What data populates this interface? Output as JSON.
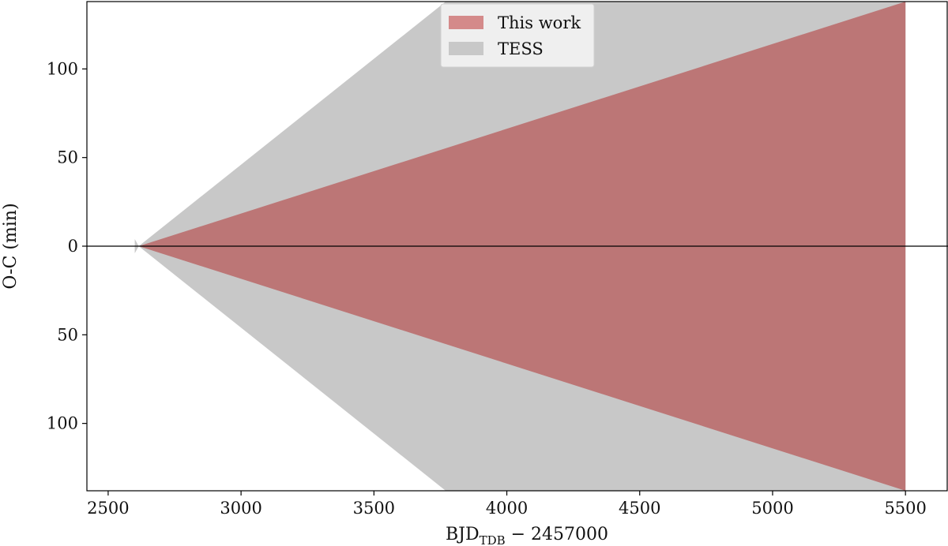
{
  "chart_data": {
    "type": "area",
    "title": "",
    "xlabel": {
      "prefix": "BJD",
      "subscript": "TDB",
      "suffix": " − 2457000"
    },
    "ylabel": "O-C (min)",
    "xlim": [
      2420,
      5660
    ],
    "ylim": [
      -138,
      138
    ],
    "x_ticks": [
      2500,
      3000,
      3500,
      4000,
      4500,
      5000,
      5500
    ],
    "y_ticks": [
      {
        "value": 100,
        "label": "100"
      },
      {
        "value": 50,
        "label": "50"
      },
      {
        "value": 0,
        "label": "0"
      },
      {
        "value": -50,
        "label": "50"
      },
      {
        "value": -100,
        "label": "100"
      }
    ],
    "zero_line": true,
    "grid": false,
    "legend_position": "top-center",
    "series": [
      {
        "name": "TESS",
        "color": "#c8c8c8",
        "shape": "symmetric-cone",
        "x": [
          2600,
          2615,
          3770,
          5500
        ],
        "upper": [
          4,
          0,
          138,
          138
        ],
        "lower": [
          -4,
          0,
          -138,
          -138
        ]
      },
      {
        "name": "This work",
        "color": "#bc7676",
        "legend_color": "#d48a8a",
        "shape": "symmetric-cone",
        "x": [
          2615,
          5500
        ],
        "upper": [
          0,
          138
        ],
        "lower": [
          0,
          -138
        ]
      }
    ]
  }
}
